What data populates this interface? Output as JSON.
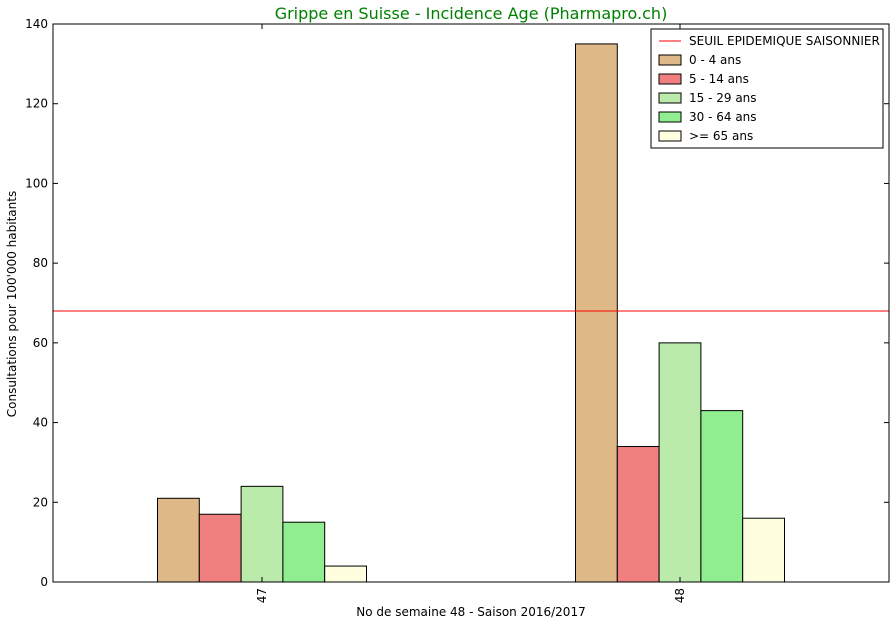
{
  "chart_data": {
    "type": "bar",
    "title": "Grippe en Suisse - Incidence Age (Pharmapro.ch)",
    "title_color": "#008000",
    "xlabel": "No de semaine 48 - Saison 2016/2017",
    "ylabel": "Consultations pour 100'000 habitants",
    "categories": [
      "47",
      "48"
    ],
    "ylim": [
      0,
      140
    ],
    "yticks": [
      0,
      20,
      40,
      60,
      80,
      100,
      120,
      140
    ],
    "grid": false,
    "legend_position": "top-right",
    "threshold": {
      "name": "SEUIL EPIDEMIQUE SAISONNIER",
      "value": 68,
      "color": "#ff0000"
    },
    "series": [
      {
        "name": "0 - 4 ans",
        "values": [
          21,
          135
        ],
        "color": "#deb887"
      },
      {
        "name": "5 - 14 ans",
        "values": [
          17,
          34
        ],
        "color": "#f08080"
      },
      {
        "name": "15 - 29 ans",
        "values": [
          24,
          60
        ],
        "color": "#bbebaa"
      },
      {
        "name": "30 - 64 ans",
        "values": [
          15,
          43
        ],
        "color": "#90ee90"
      },
      {
        "name": ">= 65 ans",
        "values": [
          4,
          16
        ],
        "color": "#ffffe0"
      }
    ]
  }
}
